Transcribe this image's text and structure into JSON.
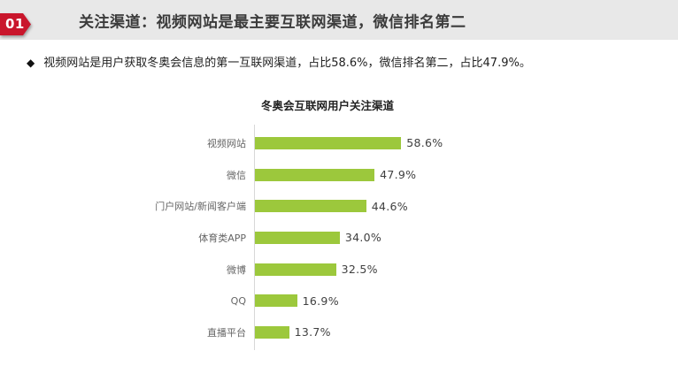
{
  "header": {
    "badge": "01",
    "title": "关注渠道：视频网站是最主要互联网渠道，微信排名第二"
  },
  "summary": {
    "bullet_icon": "◆",
    "text": "视频网站是用户获取冬奥会信息的第一互联网渠道，占比58.6%，微信排名第二，占比47.9%。"
  },
  "chart_data": {
    "type": "bar",
    "orientation": "horizontal",
    "title": "冬奥会互联网用户关注渠道",
    "categories": [
      "视频网站",
      "微信",
      "门户网站/新闻客户端",
      "体育类APP",
      "微博",
      "QQ",
      "直播平台"
    ],
    "values": [
      58.6,
      47.9,
      44.6,
      34.0,
      32.5,
      16.9,
      13.7
    ],
    "value_labels": [
      "58.6%",
      "47.9%",
      "44.6%",
      "34.0%",
      "32.5%",
      "16.9%",
      "13.7%"
    ],
    "xlim": [
      0,
      100
    ],
    "grid": false,
    "legend": "none",
    "value_label_position": "right-of-bar",
    "bar_color": "#9cc83c"
  },
  "colors": {
    "accent_red": "#c9162c",
    "header_bg": "#e8e8e8",
    "bar_green": "#9cc83c",
    "axis_gray": "#d8d8d8",
    "title_text": "#3b3b3b",
    "label_gray": "#666666"
  }
}
